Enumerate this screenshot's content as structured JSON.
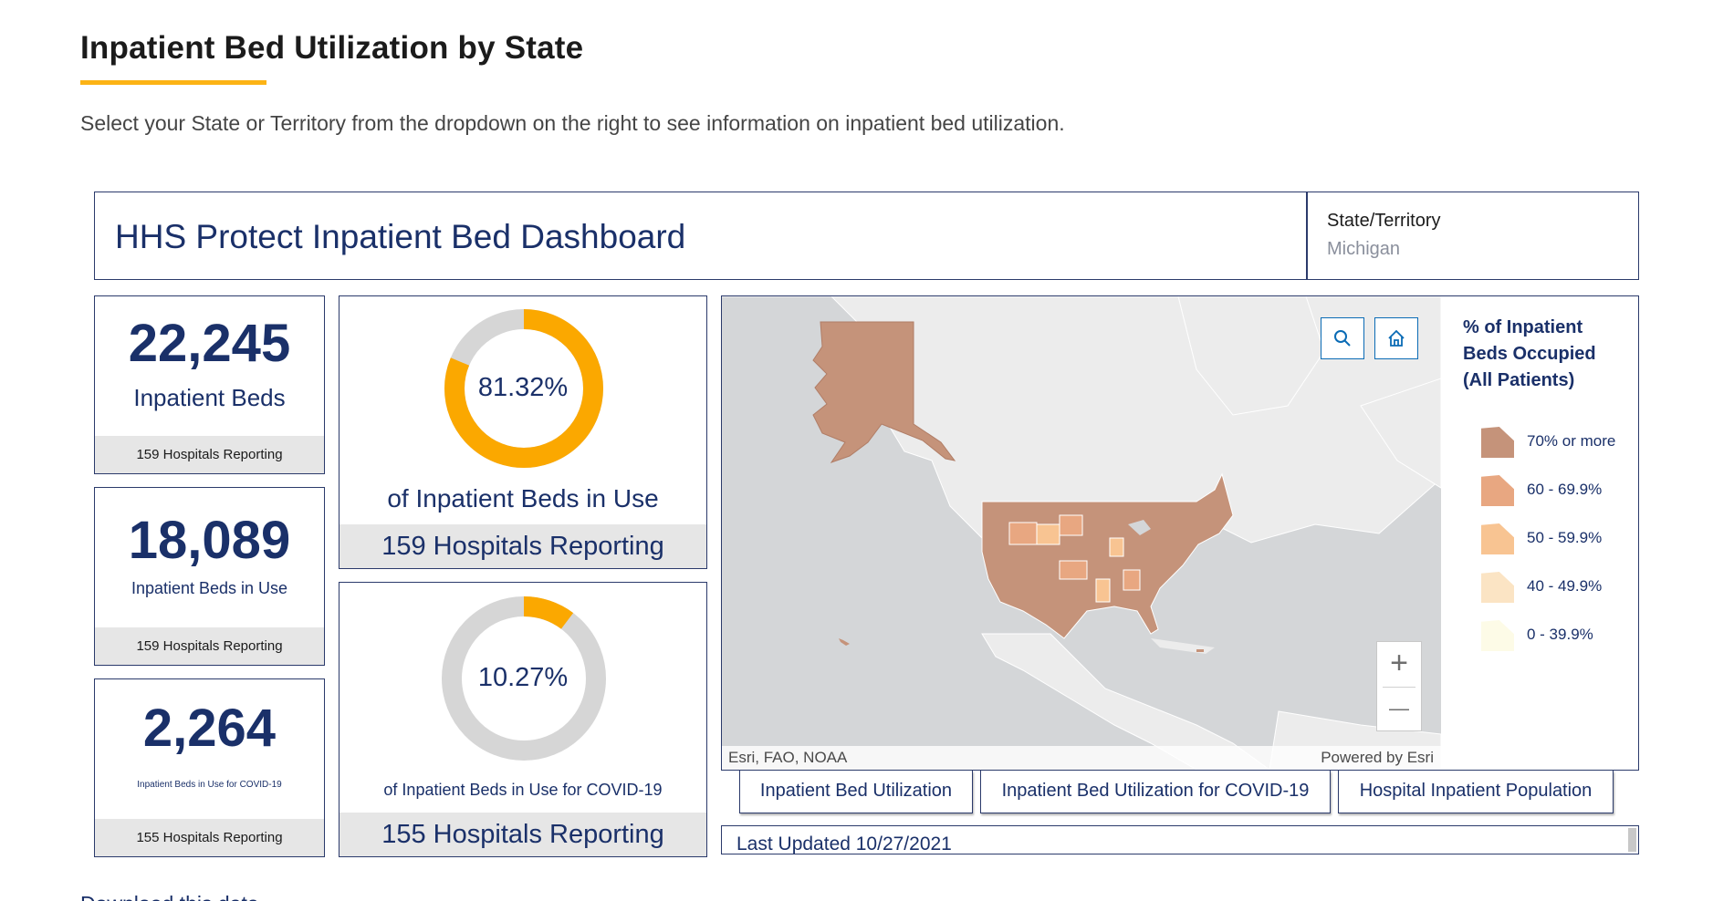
{
  "page": {
    "title": "Inpatient Bed Utilization by State",
    "intro": "Select your State or Territory from the dropdown on the right to see information on inpatient bed utilization.",
    "download_link": "Download this data"
  },
  "dashboard": {
    "title": "HHS Protect Inpatient Bed Dashboard",
    "state_label": "State/Territory",
    "state_value": "Michigan"
  },
  "stats": [
    {
      "value": "22,245",
      "label": "Inpatient Beds",
      "footer": "159 Hospitals Reporting"
    },
    {
      "value": "18,089",
      "label": "Inpatient Beds in Use",
      "footer": "159 Hospitals Reporting"
    },
    {
      "value": "2,264",
      "label": "Inpatient Beds in Use for COVID-19",
      "footer": "155 Hospitals Reporting"
    }
  ],
  "gauges": [
    {
      "percent_text": "81.32%",
      "fraction": 0.8132,
      "label": "of Inpatient Beds in Use",
      "footer": "159 Hospitals Reporting"
    },
    {
      "percent_text": "10.27%",
      "fraction": 0.1027,
      "label": "of Inpatient Beds in Use for COVID-19",
      "footer": "155 Hospitals Reporting"
    }
  ],
  "colors": {
    "accent": "#fcb315",
    "navy": "#1a3069",
    "gauge_fill": "#fba800",
    "gauge_track": "#d6d6d6"
  },
  "map": {
    "search_icon": "search-icon",
    "home_icon": "home-icon",
    "zoom_in": "+",
    "zoom_out": "—",
    "attribution_left": "Esri, FAO, NOAA",
    "attribution_right": "Powered by Esri",
    "legend": {
      "title": "% of Inpatient Beds Occupied (All Patients)",
      "items": [
        {
          "label": "70% or more",
          "color": "#c5937a"
        },
        {
          "label": "60 - 69.9%",
          "color": "#e8a781"
        },
        {
          "label": "50 - 59.9%",
          "color": "#f8c492"
        },
        {
          "label": "40 - 49.9%",
          "color": "#fbe4c4"
        },
        {
          "label": "0 - 39.9%",
          "color": "#fdfbe7"
        }
      ]
    }
  },
  "tabs": [
    "Inpatient Bed Utilization",
    "Inpatient Bed Utilization for COVID-19",
    "Hospital Inpatient Population"
  ],
  "last_updated": "Last Updated 10/27/2021"
}
